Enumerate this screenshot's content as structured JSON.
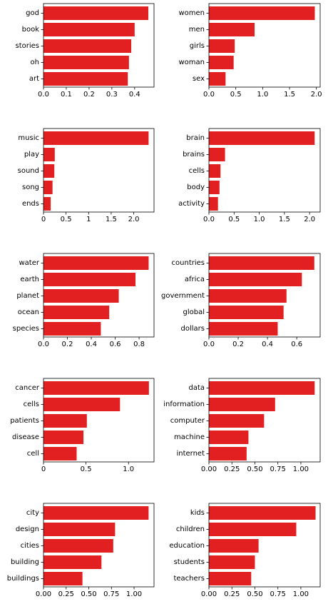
{
  "chart_data": [
    {
      "type": "bar",
      "orientation": "horizontal",
      "categories": [
        "god",
        "book",
        "stories",
        "oh",
        "art"
      ],
      "values": [
        0.46,
        0.4,
        0.385,
        0.375,
        0.37
      ],
      "xlim": [
        0,
        0.485
      ],
      "xticks": [
        "0.0",
        "0.1",
        "0.2",
        "0.3",
        "0.4"
      ],
      "xtick_values": [
        0,
        0.1,
        0.2,
        0.3,
        0.4
      ],
      "color": "#e32021"
    },
    {
      "type": "bar",
      "orientation": "horizontal",
      "categories": [
        "women",
        "men",
        "girls",
        "woman",
        "sex"
      ],
      "values": [
        1.97,
        0.85,
        0.48,
        0.46,
        0.31
      ],
      "xlim": [
        0,
        2.07
      ],
      "xticks": [
        "0.0",
        "0.5",
        "1.0",
        "1.5",
        "2.0"
      ],
      "xtick_values": [
        0,
        0.5,
        1.0,
        1.5,
        2.0
      ],
      "color": "#e32021"
    },
    {
      "type": "bar",
      "orientation": "horizontal",
      "categories": [
        "music",
        "play",
        "sound",
        "song",
        "ends"
      ],
      "values": [
        2.33,
        0.25,
        0.24,
        0.2,
        0.16
      ],
      "xlim": [
        0,
        2.45
      ],
      "xticks": [
        "0",
        "0.5",
        "1",
        "1.5",
        "2.0"
      ],
      "xtick_values": [
        0,
        0.5,
        1.0,
        1.5,
        2.0
      ],
      "color": "#e32021"
    },
    {
      "type": "bar",
      "orientation": "horizontal",
      "categories": [
        "brain",
        "brains",
        "cells",
        "body",
        "activity"
      ],
      "values": [
        2.1,
        0.32,
        0.23,
        0.21,
        0.18
      ],
      "xlim": [
        0,
        2.21
      ],
      "xticks": [
        "0.0",
        "0.5",
        "1.0",
        "1.5",
        "2.0"
      ],
      "xtick_values": [
        0,
        0.5,
        1.0,
        1.5,
        2.0
      ],
      "color": "#e32021"
    },
    {
      "type": "bar",
      "orientation": "horizontal",
      "categories": [
        "water",
        "earth",
        "planet",
        "ocean",
        "species"
      ],
      "values": [
        0.88,
        0.77,
        0.63,
        0.55,
        0.48
      ],
      "xlim": [
        0,
        0.925
      ],
      "xticks": [
        "0.0",
        "0.2",
        "0.4",
        "0.6",
        "0.8"
      ],
      "xtick_values": [
        0,
        0.2,
        0.4,
        0.6,
        0.8
      ],
      "color": "#e32021"
    },
    {
      "type": "bar",
      "orientation": "horizontal",
      "categories": [
        "countries",
        "africa",
        "government",
        "global",
        "dollars"
      ],
      "values": [
        0.72,
        0.635,
        0.53,
        0.51,
        0.47
      ],
      "xlim": [
        0,
        0.76
      ],
      "xticks": [
        "0.0",
        "0.2",
        "0.4",
        "0.6"
      ],
      "xtick_values": [
        0,
        0.2,
        0.4,
        0.6
      ],
      "color": "#e32021"
    },
    {
      "type": "bar",
      "orientation": "horizontal",
      "categories": [
        "cancer",
        "cells",
        "patients",
        "disease",
        "cell"
      ],
      "values": [
        1.24,
        0.9,
        0.51,
        0.47,
        0.39
      ],
      "xlim": [
        0,
        1.3
      ],
      "xticks": [
        "0",
        "0.5",
        "1.0"
      ],
      "xtick_values": [
        0,
        0.5,
        1.0
      ],
      "color": "#e32021"
    },
    {
      "type": "bar",
      "orientation": "horizontal",
      "categories": [
        "data",
        "information",
        "computer",
        "machine",
        "internet"
      ],
      "values": [
        1.15,
        0.72,
        0.6,
        0.43,
        0.41
      ],
      "xlim": [
        0,
        1.21
      ],
      "xticks": [
        "0.00",
        "0.25",
        "0.50",
        "0.75",
        "1.00"
      ],
      "xtick_values": [
        0,
        0.25,
        0.5,
        0.75,
        1.0
      ],
      "color": "#e32021"
    },
    {
      "type": "bar",
      "orientation": "horizontal",
      "categories": [
        "city",
        "design",
        "cities",
        "building",
        "buildings"
      ],
      "values": [
        1.16,
        0.79,
        0.77,
        0.64,
        0.43
      ],
      "xlim": [
        0,
        1.22
      ],
      "xticks": [
        "0.00",
        "0.25",
        "0.50",
        "0.75",
        "1.00"
      ],
      "xtick_values": [
        0,
        0.25,
        0.5,
        0.75,
        1.0
      ],
      "color": "#e32021"
    },
    {
      "type": "bar",
      "orientation": "horizontal",
      "categories": [
        "kids",
        "children",
        "education",
        "students",
        "teachers"
      ],
      "values": [
        1.16,
        0.95,
        0.54,
        0.5,
        0.46
      ],
      "xlim": [
        0,
        1.21
      ],
      "xticks": [
        "0.00",
        "0.25",
        "0.50",
        "0.75",
        "1.00"
      ],
      "xtick_values": [
        0,
        0.25,
        0.5,
        0.75,
        1.0
      ],
      "color": "#e32021"
    }
  ]
}
